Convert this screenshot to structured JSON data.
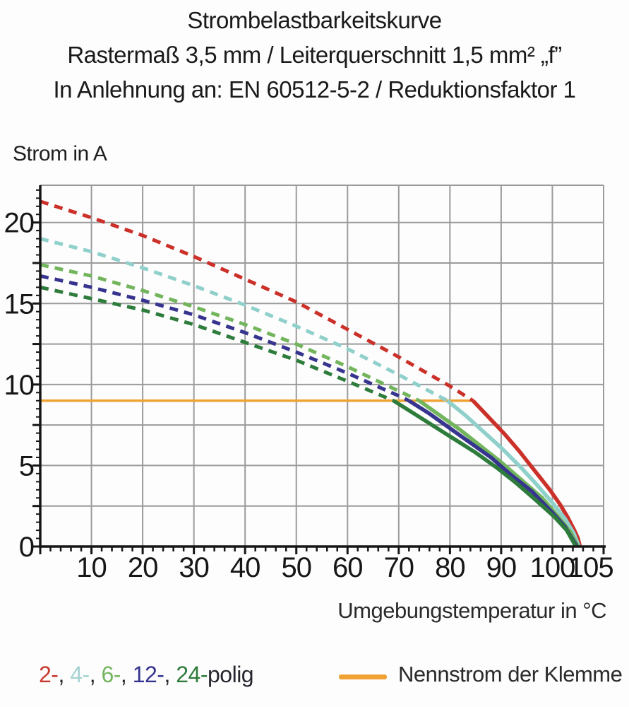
{
  "title": {
    "line1": "Strombelastbarkeitskurve",
    "line2": "Rastermaß 3,5 mm / Leiterquerschnitt 1,5 mm² „f”",
    "line3": "In Anlehnung an: EN 60512-5-2 / Reduktionsfaktor 1"
  },
  "y_axis_title": "Strom in A",
  "x_axis_title": "Umgebungstemperatur in °C",
  "legend": {
    "poles": [
      {
        "text": "2-",
        "color": "#c8382e"
      },
      {
        "text": "4-",
        "color": "#a6d3d1"
      },
      {
        "text": "6-",
        "color": "#74b65f"
      },
      {
        "text": "12-",
        "color": "#37348f"
      },
      {
        "text": "24-",
        "color": "#2e7c3c"
      }
    ],
    "separator": ", ",
    "suffix": "polig",
    "suffix_color": "#26262e",
    "rated_label": "Nennstrom der Klemme",
    "rated_color": "#f0a233"
  },
  "colors": {
    "grid": "#9b9b9b",
    "axis": "#161616",
    "tick_text": "#161616",
    "background": "#fdfdfd"
  },
  "chart_data": {
    "type": "line",
    "title": "Strombelastbarkeitskurve",
    "xlabel": "Umgebungstemperatur in °C",
    "ylabel": "Strom in A",
    "xlim": [
      0,
      110
    ],
    "ylim": [
      0,
      22.3
    ],
    "grid": true,
    "legend_position": "bottom",
    "x_tick_labels": [
      10,
      20,
      30,
      40,
      50,
      60,
      70,
      80,
      90,
      100,
      105
    ],
    "x_label_offsets": {
      "105": 18
    },
    "y_tick_labels": [
      0,
      5,
      10,
      15,
      20
    ],
    "x_grid_step": 10,
    "y_grid_step": 2.5,
    "x_minor_tick_step": 2,
    "y_minor_tick_step": 0.5,
    "rated_current": {
      "label": "Nennstrom der Klemme",
      "value": 9,
      "x_start": 0,
      "x_end": 84.5,
      "color": "#f0a233"
    },
    "series": [
      {
        "name": "2-polig",
        "color": "#cb3029",
        "dashed": [
          [
            0,
            21.3
          ],
          [
            10,
            20.3
          ],
          [
            20,
            19.2
          ],
          [
            30,
            17.9
          ],
          [
            40,
            16.5
          ],
          [
            50,
            15.1
          ],
          [
            60,
            13.4
          ],
          [
            70,
            11.7
          ],
          [
            80,
            9.9
          ],
          [
            84.5,
            9
          ]
        ],
        "solid": [
          [
            84.5,
            9
          ],
          [
            87.5,
            8.0
          ],
          [
            90.5,
            7.0
          ],
          [
            93.5,
            5.9
          ],
          [
            96.5,
            4.7
          ],
          [
            99.5,
            3.5
          ],
          [
            101.5,
            2.6
          ],
          [
            103,
            1.8
          ],
          [
            104.3,
            1.0
          ],
          [
            105,
            0.5
          ],
          [
            105.4,
            0
          ]
        ]
      },
      {
        "name": "4-polig",
        "color": "#8fd0cb",
        "dashed": [
          [
            0,
            19.0
          ],
          [
            10,
            18.2
          ],
          [
            20,
            17.2
          ],
          [
            30,
            16.1
          ],
          [
            40,
            14.9
          ],
          [
            50,
            13.6
          ],
          [
            60,
            12.2
          ],
          [
            70,
            10.6
          ],
          [
            79.5,
            9
          ]
        ],
        "solid": [
          [
            79.5,
            9
          ],
          [
            83,
            8.1
          ],
          [
            86.5,
            7.1
          ],
          [
            90,
            6.1
          ],
          [
            93.5,
            5.0
          ],
          [
            97,
            3.8
          ],
          [
            100,
            2.7
          ],
          [
            102.5,
            1.7
          ],
          [
            104.2,
            0.8
          ],
          [
            105.2,
            0
          ]
        ]
      },
      {
        "name": "6-polig",
        "color": "#72b55c",
        "dashed": [
          [
            0,
            17.4
          ],
          [
            10,
            16.7
          ],
          [
            20,
            15.8
          ],
          [
            30,
            14.8
          ],
          [
            40,
            13.7
          ],
          [
            50,
            12.5
          ],
          [
            60,
            11.1
          ],
          [
            70,
            9.6
          ],
          [
            74,
            9
          ]
        ],
        "solid": [
          [
            74,
            9
          ],
          [
            78,
            8.1
          ],
          [
            82,
            7.2
          ],
          [
            86,
            6.2
          ],
          [
            90,
            5.2
          ],
          [
            94,
            4.1
          ],
          [
            98,
            3.0
          ],
          [
            101,
            1.9
          ],
          [
            103.5,
            0.9
          ],
          [
            105,
            0
          ]
        ]
      },
      {
        "name": "12-polig",
        "color": "#37348f",
        "dashed": [
          [
            0,
            16.7
          ],
          [
            10,
            16.0
          ],
          [
            20,
            15.2
          ],
          [
            30,
            14.3
          ],
          [
            40,
            13.2
          ],
          [
            50,
            12.0
          ],
          [
            60,
            10.7
          ],
          [
            70,
            9.3
          ],
          [
            72,
            9
          ]
        ],
        "solid": [
          [
            72,
            9
          ],
          [
            76,
            8.2
          ],
          [
            80,
            7.3
          ],
          [
            84,
            6.4
          ],
          [
            88,
            5.5
          ],
          [
            92,
            4.4
          ],
          [
            96,
            3.4
          ],
          [
            100,
            2.1
          ],
          [
            102.5,
            1.2
          ],
          [
            104.8,
            0
          ]
        ]
      },
      {
        "name": "24-polig",
        "color": "#2e7c3c",
        "dashed": [
          [
            0,
            16.0
          ],
          [
            10,
            15.3
          ],
          [
            20,
            14.6
          ],
          [
            30,
            13.7
          ],
          [
            40,
            12.6
          ],
          [
            50,
            11.5
          ],
          [
            60,
            10.2
          ],
          [
            69,
            9
          ]
        ],
        "solid": [
          [
            69,
            9
          ],
          [
            73,
            8.2
          ],
          [
            77,
            7.4
          ],
          [
            81,
            6.6
          ],
          [
            85,
            5.8
          ],
          [
            89,
            4.9
          ],
          [
            93,
            3.9
          ],
          [
            97,
            2.8
          ],
          [
            100.5,
            1.8
          ],
          [
            102.8,
            1.0
          ],
          [
            104.6,
            0
          ]
        ]
      }
    ]
  }
}
